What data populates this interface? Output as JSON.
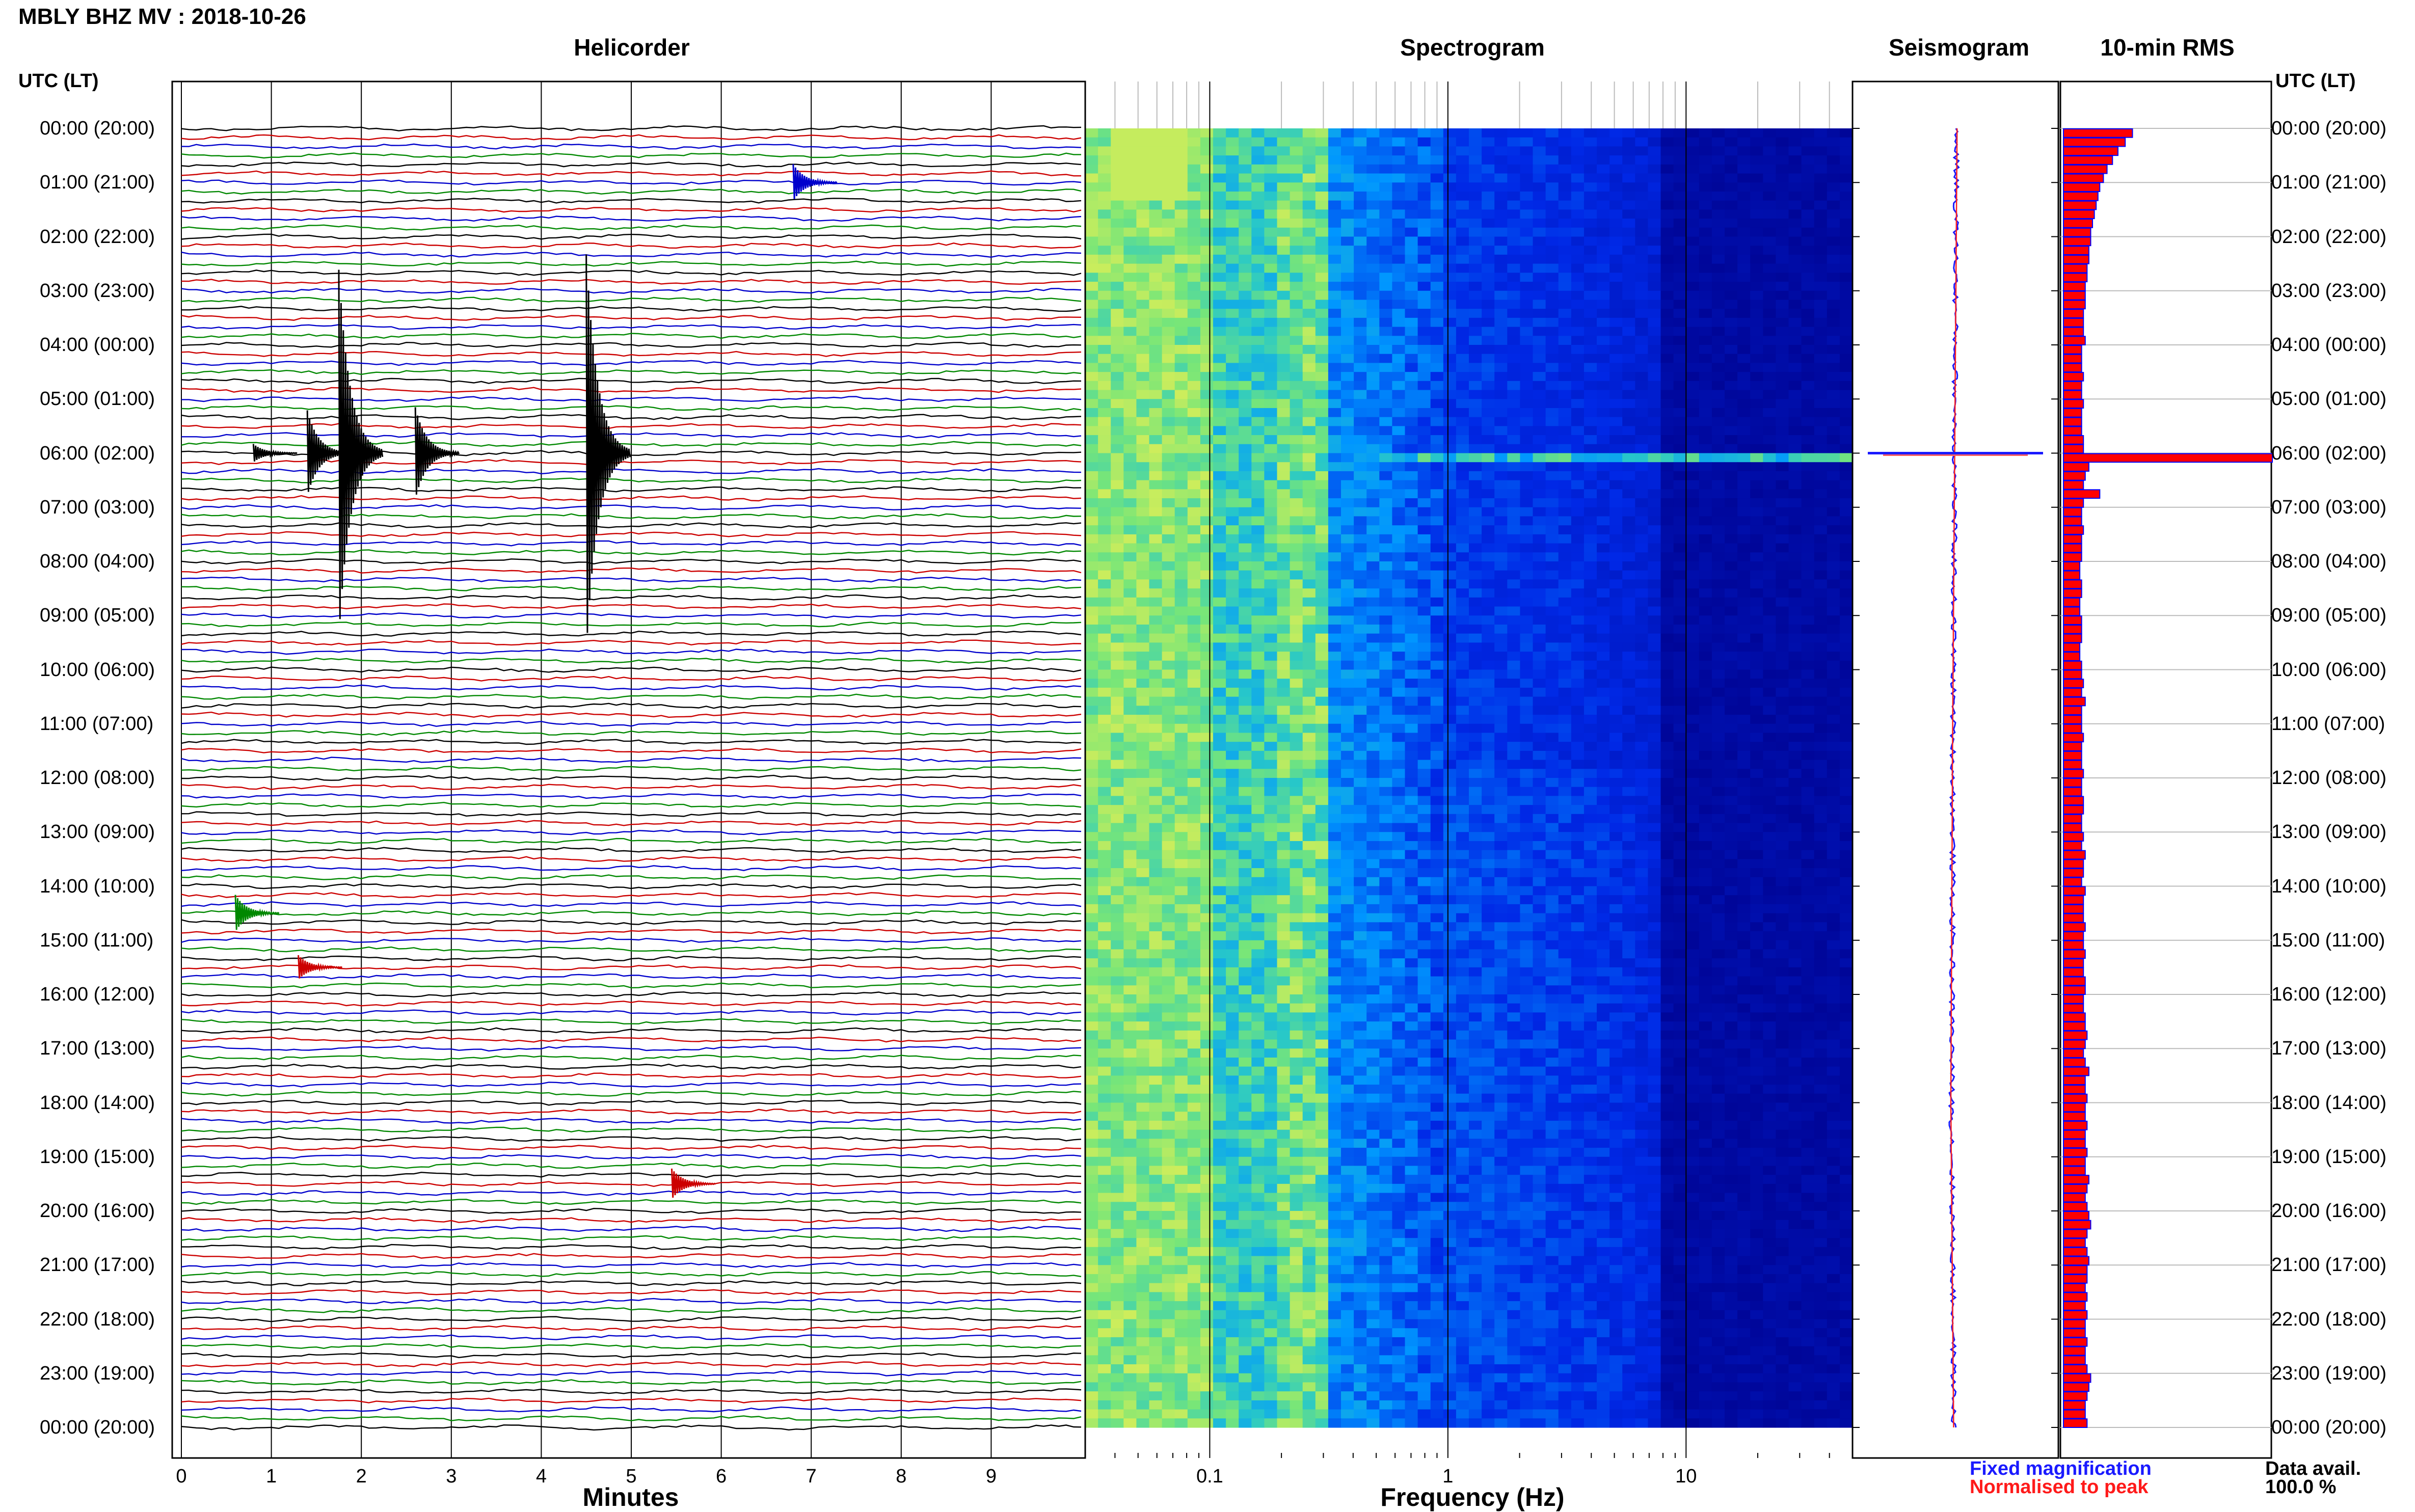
{
  "header": {
    "title": "MBLY BHZ MV : 2018-10-26"
  },
  "panels": {
    "helicorder": "Helicorder",
    "spectrogram": "Spectrogram",
    "seismogram": "Seismogram",
    "rms": "10-min RMS"
  },
  "axes": {
    "utc_left": "UTC (LT)",
    "utc_right": "UTC (LT)",
    "minutes_label": "Minutes",
    "frequency_label": "Frequency (Hz)"
  },
  "legend": {
    "fixed": "Fixed magnification",
    "normalised": "Normalised to peak",
    "data_avail_label": "Data avail.",
    "data_avail_value": "100.0 %"
  },
  "colors": {
    "trace_cycle": [
      "#000000",
      "#cc0000",
      "#0000cc",
      "#008800"
    ],
    "rms_bar_fill": "#ff0000",
    "rms_bar_edge": "#0000ff",
    "spectrogram_low": "#00008b",
    "spectrogram_high": "#ffff55"
  },
  "time_labels": [
    "00:00 (20:00)",
    "01:00 (21:00)",
    "02:00 (22:00)",
    "03:00 (23:00)",
    "04:00 (00:00)",
    "05:00 (01:00)",
    "06:00 (02:00)",
    "07:00 (03:00)",
    "08:00 (04:00)",
    "09:00 (05:00)",
    "10:00 (06:00)",
    "11:00 (07:00)",
    "12:00 (08:00)",
    "13:00 (09:00)",
    "14:00 (10:00)",
    "15:00 (11:00)",
    "16:00 (12:00)",
    "17:00 (13:00)",
    "18:00 (14:00)",
    "19:00 (15:00)",
    "20:00 (16:00)",
    "21:00 (17:00)",
    "22:00 (18:00)",
    "23:00 (19:00)",
    "00:00 (20:00)"
  ],
  "chart_data": [
    {
      "type": "line",
      "name": "Helicorder",
      "xlabel": "Minutes",
      "ylabel": "UTC (LT)",
      "x_ticks": [
        "0",
        "1",
        "2",
        "3",
        "4",
        "5",
        "6",
        "7",
        "8",
        "9"
      ],
      "xlim": [
        0,
        10
      ],
      "rows_per_hour": 6,
      "hours": 24,
      "events": [
        {
          "hour": 1.0,
          "minute": 6.8,
          "amplitude": 0.6
        },
        {
          "hour": 6.0,
          "minute": 0.8,
          "amplitude": 0.3
        },
        {
          "hour": 6.0,
          "minute": 1.4,
          "amplitude": 1.4
        },
        {
          "hour": 6.0,
          "minute": 1.75,
          "amplitude": 6.0
        },
        {
          "hour": 6.0,
          "minute": 2.6,
          "amplitude": 1.5
        },
        {
          "hour": 6.0,
          "minute": 4.5,
          "amplitude": 6.5
        },
        {
          "hour": 14.5,
          "minute": 0.6,
          "amplitude": 0.6
        },
        {
          "hour": 15.5,
          "minute": 1.3,
          "amplitude": 0.4
        },
        {
          "hour": 19.5,
          "minute": 5.45,
          "amplitude": 0.5
        }
      ]
    },
    {
      "type": "heatmap",
      "name": "Spectrogram",
      "xlabel": "Frequency (Hz)",
      "x_scale": "log",
      "x_ticks": [
        "0.1",
        "1",
        "10"
      ],
      "xlim": [
        0.03,
        50
      ],
      "dominant_band_hz": [
        0.03,
        0.3
      ],
      "event_line_hour": 6.0
    },
    {
      "type": "line",
      "name": "Seismogram",
      "series": [
        {
          "name": "Fixed magnification",
          "color": "#0000ff"
        },
        {
          "name": "Normalised to peak",
          "color": "#ff0000"
        }
      ],
      "spike_hour": 6.0
    },
    {
      "type": "bar",
      "name": "10-min RMS",
      "orientation": "horizontal",
      "interval_minutes": 10,
      "values": [
        0.38,
        0.34,
        0.3,
        0.27,
        0.24,
        0.22,
        0.2,
        0.19,
        0.18,
        0.17,
        0.16,
        0.15,
        0.15,
        0.14,
        0.14,
        0.13,
        0.13,
        0.12,
        0.12,
        0.12,
        0.11,
        0.11,
        0.11,
        0.12,
        0.1,
        0.1,
        0.1,
        0.11,
        0.1,
        0.1,
        0.11,
        0.1,
        0.1,
        0.1,
        0.11,
        0.11,
        1.15,
        0.14,
        0.12,
        0.11,
        0.2,
        0.11,
        0.1,
        0.1,
        0.11,
        0.1,
        0.1,
        0.1,
        0.09,
        0.09,
        0.1,
        0.1,
        0.09,
        0.09,
        0.1,
        0.1,
        0.1,
        0.09,
        0.09,
        0.1,
        0.1,
        0.11,
        0.1,
        0.12,
        0.1,
        0.1,
        0.1,
        0.11,
        0.1,
        0.1,
        0.1,
        0.11,
        0.1,
        0.1,
        0.11,
        0.11,
        0.1,
        0.1,
        0.11,
        0.1,
        0.12,
        0.11,
        0.11,
        0.1,
        0.12,
        0.11,
        0.11,
        0.11,
        0.12,
        0.11,
        0.11,
        0.12,
        0.11,
        0.11,
        0.12,
        0.12,
        0.11,
        0.11,
        0.12,
        0.12,
        0.13,
        0.12,
        0.11,
        0.12,
        0.14,
        0.12,
        0.12,
        0.13,
        0.12,
        0.12,
        0.13,
        0.12,
        0.12,
        0.13,
        0.12,
        0.12,
        0.14,
        0.13,
        0.12,
        0.13,
        0.14,
        0.15,
        0.13,
        0.12,
        0.13,
        0.14,
        0.13,
        0.13,
        0.12,
        0.13,
        0.12,
        0.13,
        0.12,
        0.12,
        0.13,
        0.12,
        0.12,
        0.13,
        0.15,
        0.14,
        0.13,
        0.12,
        0.12,
        0.13
      ]
    }
  ]
}
